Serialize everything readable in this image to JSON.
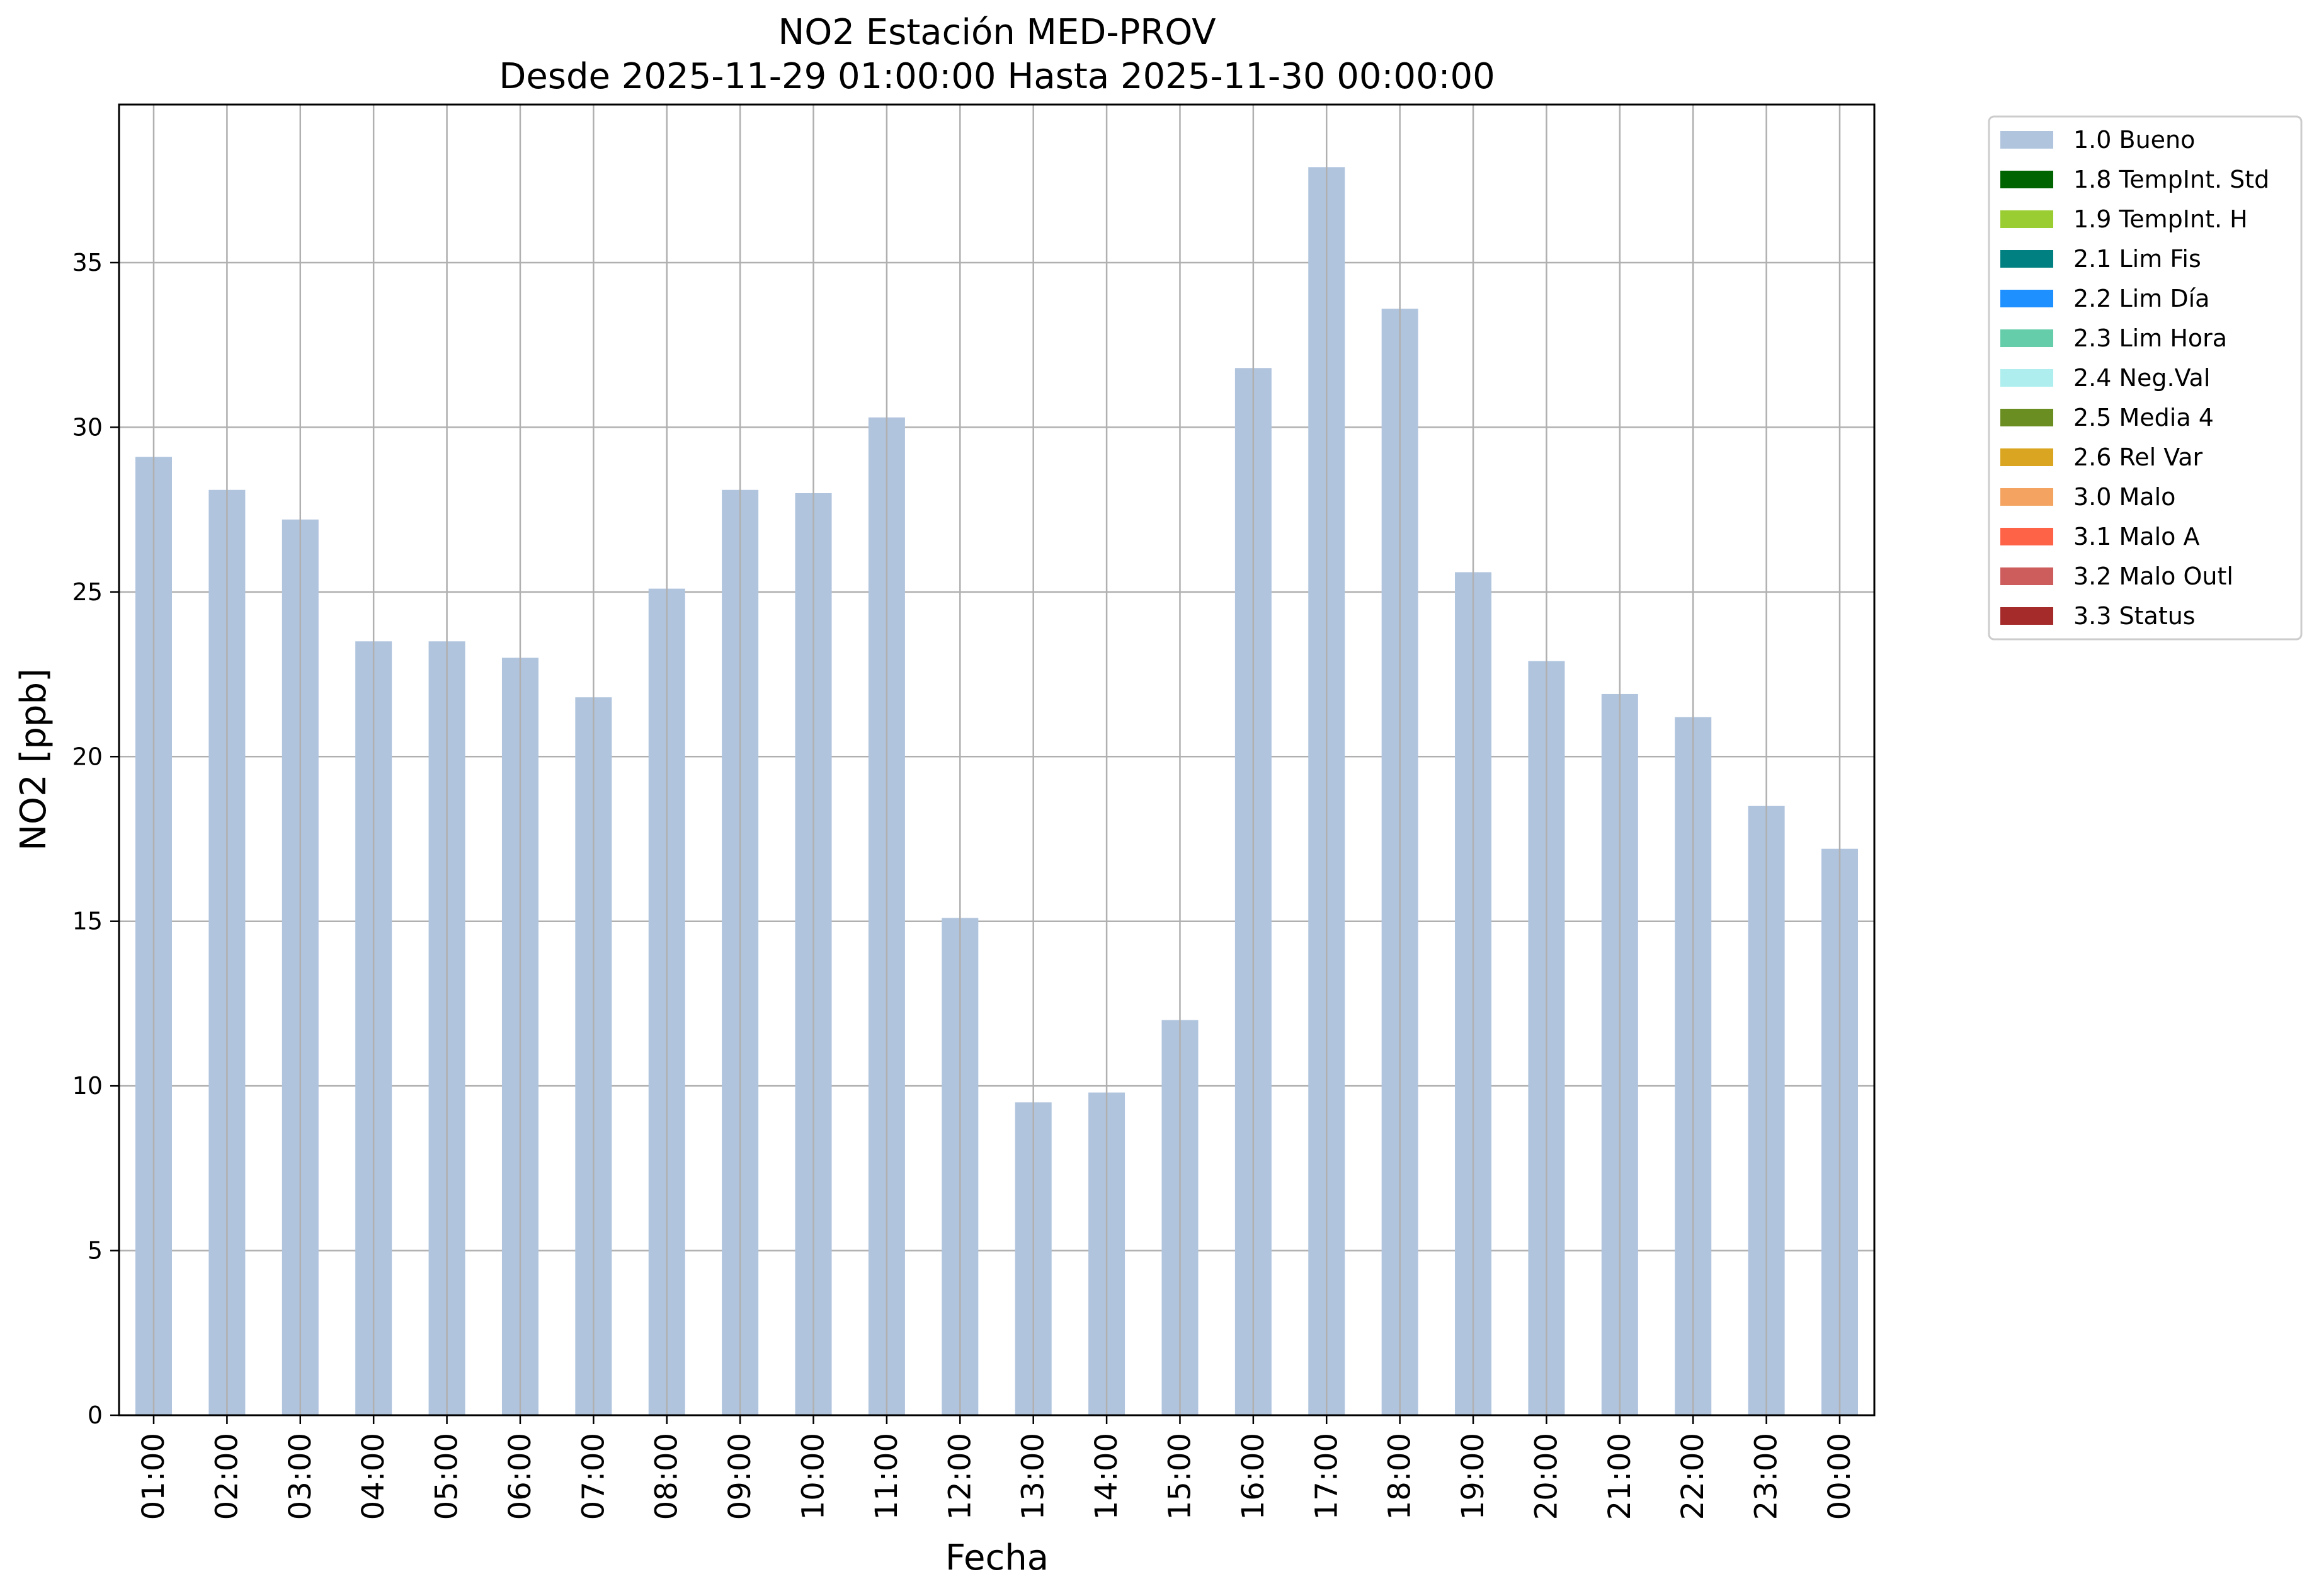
{
  "chart_data": {
    "type": "bar",
    "title": "NO2 Estación MED-PROV",
    "subtitle": "Desde 2025-11-29 01:00:00 Hasta 2025-11-30 00:00:00",
    "xlabel": "Fecha",
    "ylabel": "NO2 [ppb]",
    "ylim": [
      0,
      39.8
    ],
    "yticks": [
      "0",
      "5",
      "10",
      "15",
      "20",
      "25",
      "30",
      "35"
    ],
    "grid": true,
    "legend_position": "outside right, top",
    "categories": [
      "01:00",
      "02:00",
      "03:00",
      "04:00",
      "05:00",
      "06:00",
      "07:00",
      "08:00",
      "09:00",
      "10:00",
      "11:00",
      "12:00",
      "13:00",
      "14:00",
      "15:00",
      "16:00",
      "17:00",
      "18:00",
      "19:00",
      "20:00",
      "21:00",
      "22:00",
      "23:00",
      "00:00"
    ],
    "series": [
      {
        "name": "1.0 Bueno",
        "color": "#b0c4de",
        "values": [
          29.1,
          28.1,
          27.2,
          23.5,
          23.5,
          23.0,
          21.8,
          25.1,
          28.1,
          28.0,
          30.3,
          15.1,
          9.5,
          9.8,
          12.0,
          31.8,
          37.9,
          33.6,
          25.6,
          22.9,
          21.9,
          21.2,
          18.5,
          17.2
        ]
      }
    ],
    "legend": [
      {
        "label": "1.0 Bueno",
        "color": "#b0c4de"
      },
      {
        "label": "1.8 TempInt. Std",
        "color": "#006400"
      },
      {
        "label": "1.9 TempInt. H",
        "color": "#9acd32"
      },
      {
        "label": "2.1 Lim Fis",
        "color": "#008080"
      },
      {
        "label": "2.2 Lim Día",
        "color": "#1e90ff"
      },
      {
        "label": "2.3 Lim Hora",
        "color": "#66cdaa"
      },
      {
        "label": "2.4 Neg.Val",
        "color": "#afeeee"
      },
      {
        "label": "2.5 Media 4",
        "color": "#6b8e23"
      },
      {
        "label": "2.6 Rel Var",
        "color": "#daa520"
      },
      {
        "label": "3.0 Malo",
        "color": "#f4a460"
      },
      {
        "label": "3.1 Malo A",
        "color": "#ff6347"
      },
      {
        "label": "3.2 Malo Outl",
        "color": "#cd5c5c"
      },
      {
        "label": "3.3 Status",
        "color": "#a52a2a"
      }
    ]
  }
}
